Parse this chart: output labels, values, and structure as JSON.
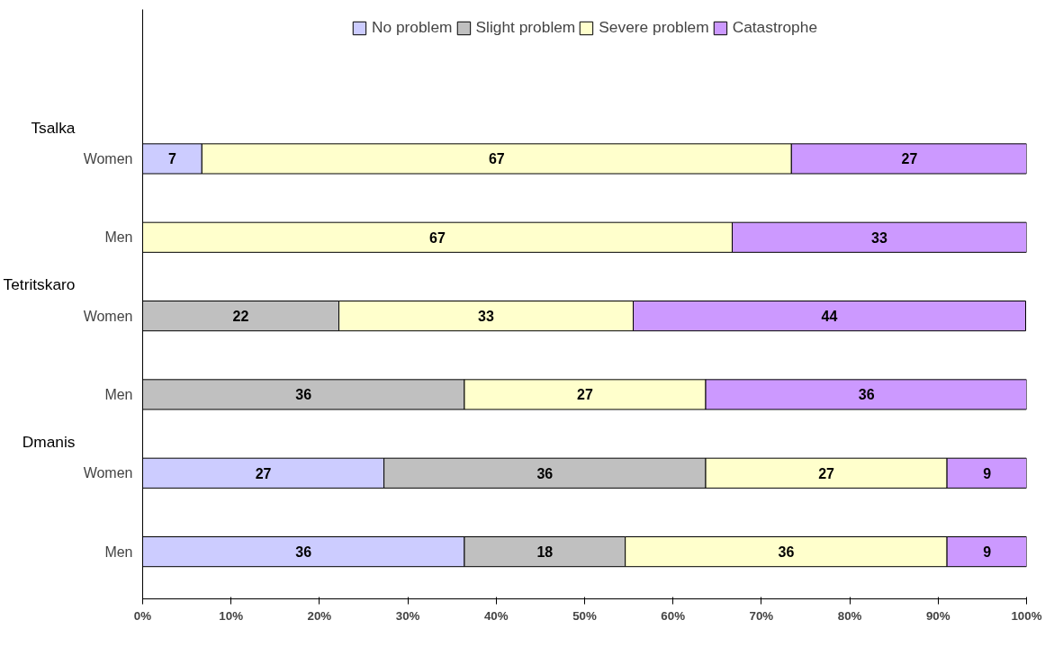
{
  "chart_data": {
    "type": "bar",
    "orientation": "horizontal",
    "stacked": true,
    "categories": [
      "Women",
      "Men",
      "Women",
      "Men",
      "Women",
      "Men"
    ],
    "series": [
      {
        "name": "No problem",
        "color": "#ccccff",
        "values": [
          6.7,
          0,
          0,
          0,
          27.3,
          36.4
        ],
        "value_labels": [
          "7",
          null,
          null,
          null,
          "27",
          "36"
        ]
      },
      {
        "name": "Slight problem",
        "color": "#c0c0c0",
        "values": [
          0,
          0,
          22.2,
          36.4,
          36.4,
          18.2
        ],
        "value_labels": [
          null,
          null,
          "22",
          "36",
          "36",
          "18"
        ]
      },
      {
        "name": "Severe problem",
        "color": "#ffffcc",
        "values": [
          66.7,
          66.7,
          33.3,
          27.3,
          27.3,
          36.4
        ],
        "value_labels": [
          "67",
          "67",
          "33",
          "27",
          "27",
          "36"
        ]
      },
      {
        "name": "Catastrophe",
        "color": "#cc99ff",
        "values": [
          26.7,
          33.3,
          44.4,
          36.4,
          9.1,
          9.1
        ],
        "value_labels": [
          "27",
          "33",
          "44",
          "36",
          "9",
          "9"
        ]
      }
    ],
    "annotations": [
      "Tsalka",
      "Tetritskaro",
      "Dmanis"
    ],
    "xlim": [
      0,
      100
    ],
    "xticks": [
      {
        "value": 0,
        "label": "0%"
      },
      {
        "value": 10,
        "label": "10%"
      },
      {
        "value": 20,
        "label": "20%"
      },
      {
        "value": 30,
        "label": "30%"
      },
      {
        "value": 40,
        "label": "40%"
      },
      {
        "value": 50,
        "label": "50%"
      },
      {
        "value": 60,
        "label": "60%"
      },
      {
        "value": 70,
        "label": "70%"
      },
      {
        "value": 80,
        "label": "80%"
      },
      {
        "value": 90,
        "label": "90%"
      },
      {
        "value": 100,
        "label": "100%"
      }
    ],
    "grid": false,
    "legend": "top"
  }
}
